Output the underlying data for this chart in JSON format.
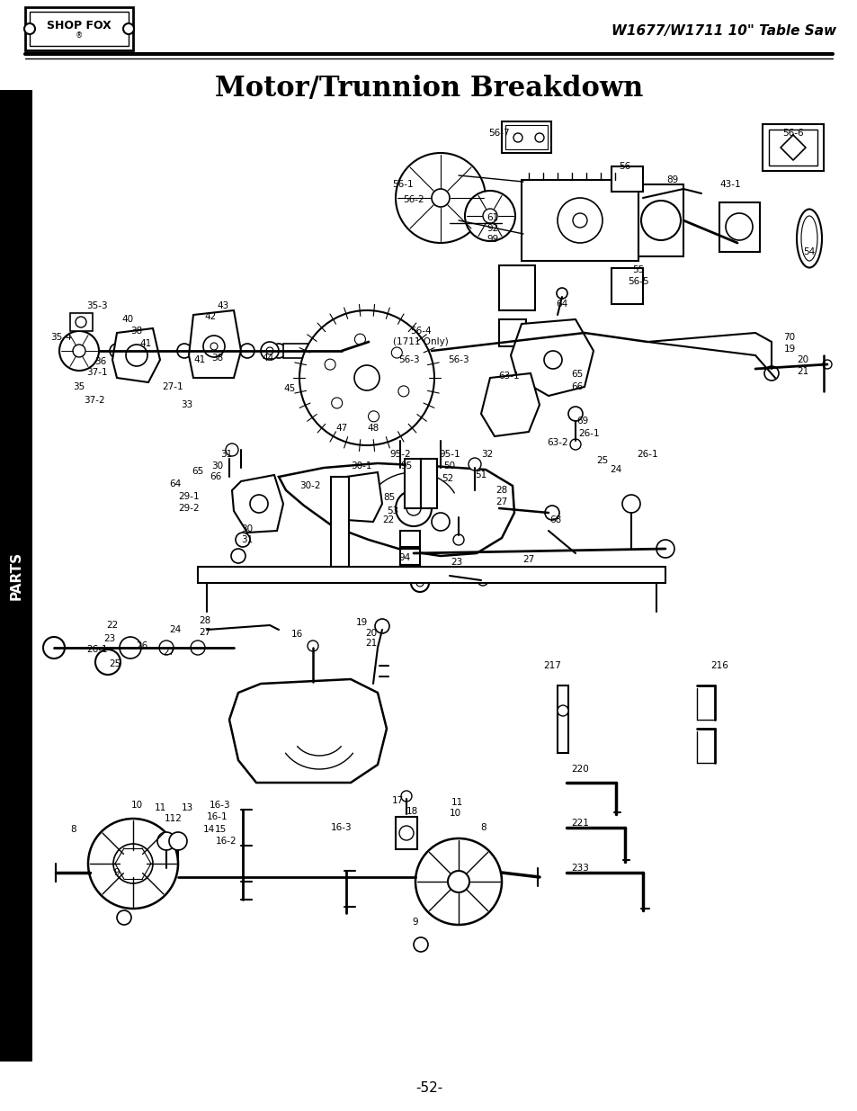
{
  "title": "Motor/Trunnion Breakdown",
  "header_right": "W1677/W1711 10\" Table Saw",
  "page_number": "-52-",
  "bg_color": "#ffffff",
  "sidebar_color": "#000000",
  "sidebar_text": "PARTS",
  "sidebar_text_color": "#ffffff",
  "title_fontsize": 22,
  "header_fontsize": 11
}
